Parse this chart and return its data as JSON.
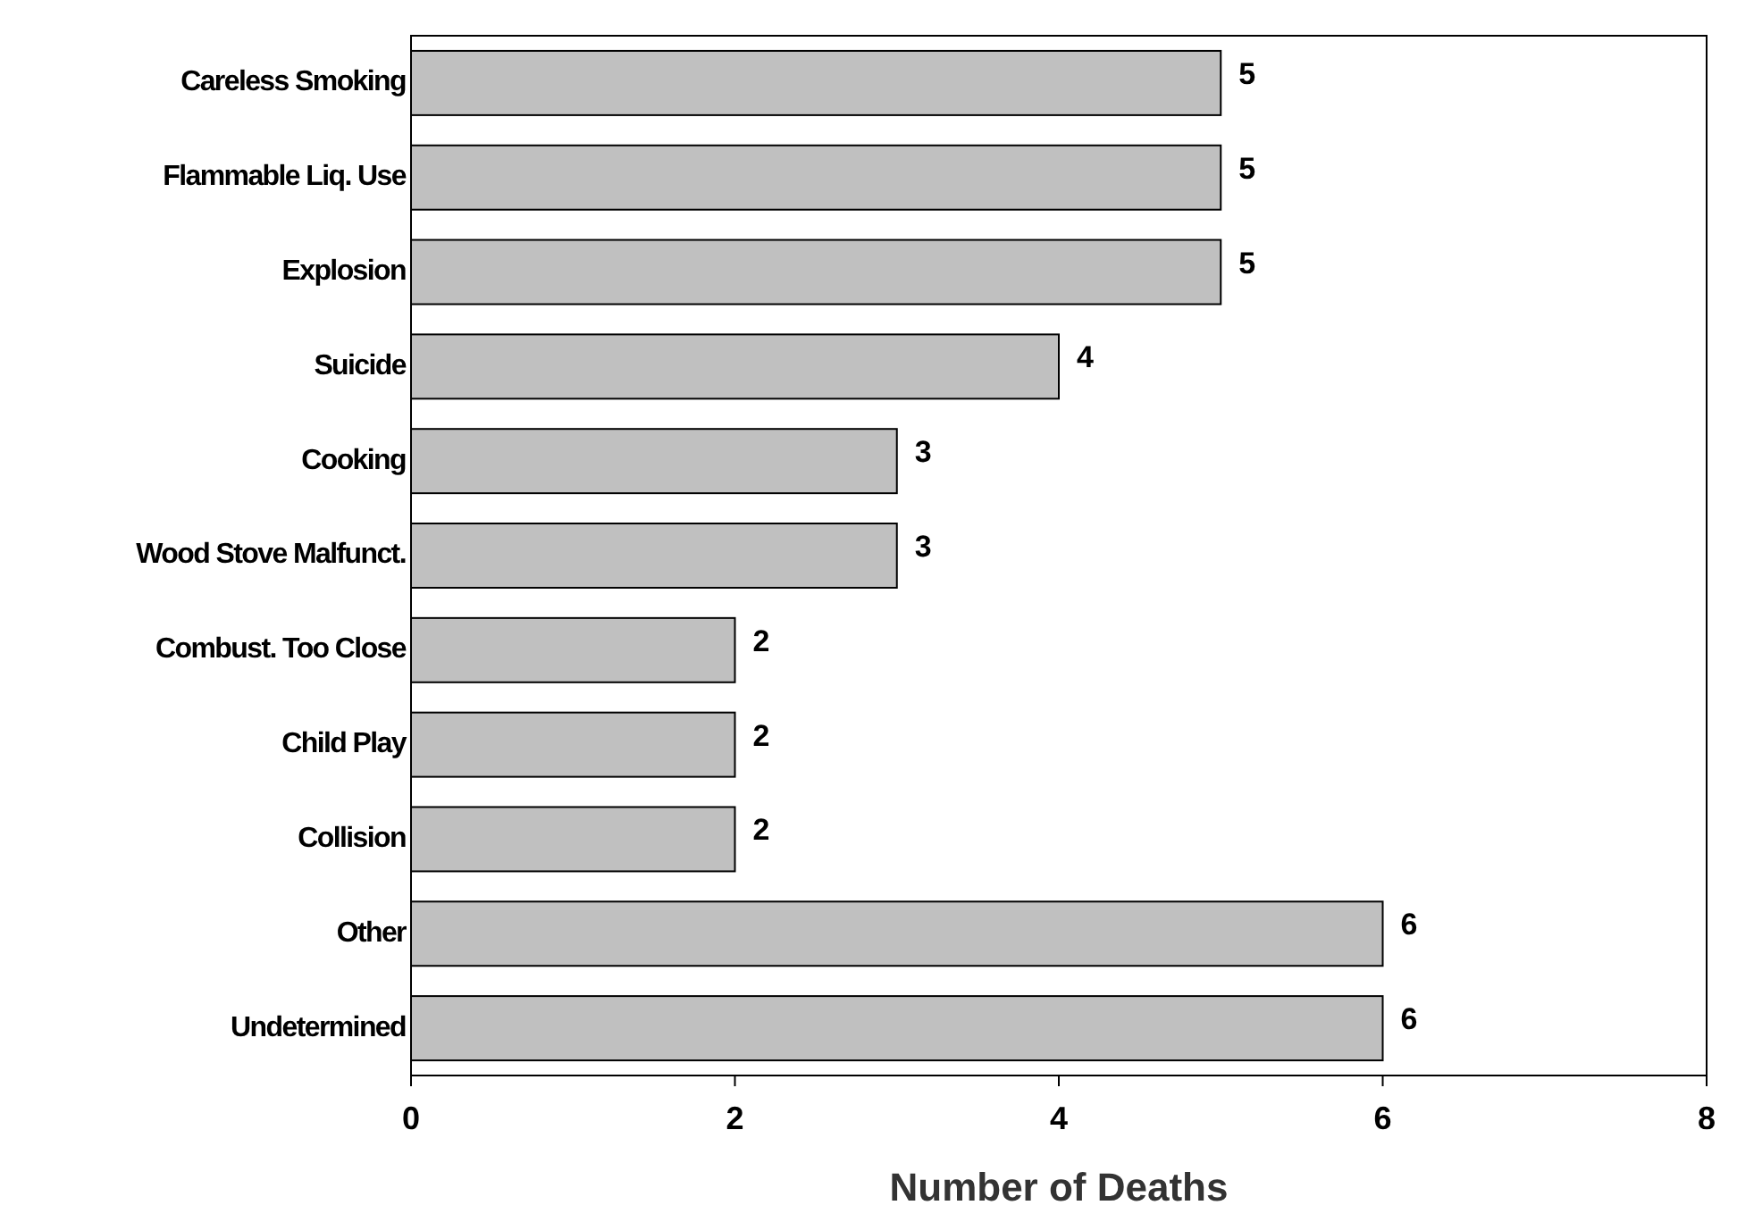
{
  "chart_data": {
    "type": "bar",
    "orientation": "horizontal",
    "xlabel": "Number of Deaths",
    "categories": [
      "Careless Smoking",
      "Flammable Liq. Use",
      "Explosion",
      "Suicide",
      "Cooking",
      "Wood Stove Malfunct.",
      "Combust. Too Close",
      "Child Play",
      "Collision",
      "Other",
      "Undetermined"
    ],
    "values": [
      5,
      5,
      5,
      4,
      3,
      3,
      2,
      2,
      2,
      6,
      6
    ],
    "color": "#c0c0c0",
    "xlim": [
      0,
      8
    ],
    "xticks": [
      0,
      2,
      4,
      6,
      8
    ],
    "grid": false,
    "data_labels": true
  }
}
